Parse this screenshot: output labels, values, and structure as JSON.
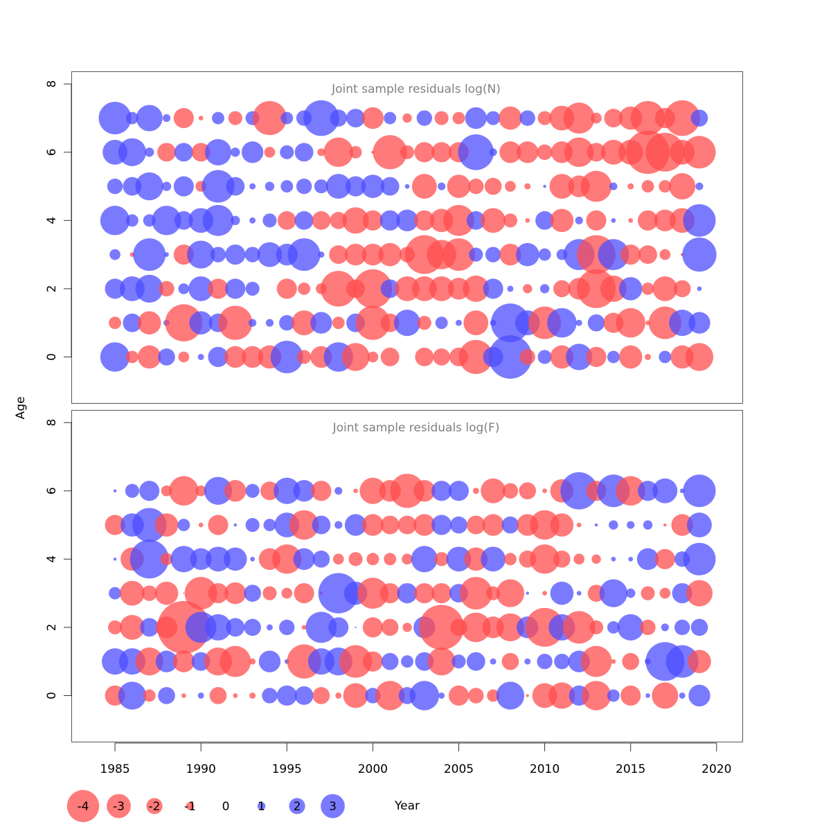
{
  "chart_data": [
    {
      "type": "scatter",
      "title": "Joint sample residuals log(N)",
      "xlabel": "Year",
      "ylabel": "Age",
      "xlim": [
        1982.5,
        2021.5
      ],
      "ylim": [
        -1.35,
        8.35
      ],
      "x_ticks": [
        1985,
        1990,
        1995,
        2000,
        2005,
        2010,
        2015,
        2020
      ],
      "y_ticks": [
        0,
        2,
        4,
        6,
        8
      ],
      "years": [
        1985,
        1986,
        1987,
        1988,
        1989,
        1990,
        1991,
        1992,
        1993,
        1994,
        1995,
        1996,
        1997,
        1998,
        1999,
        2000,
        2001,
        2002,
        2003,
        2004,
        2005,
        2006,
        2007,
        2008,
        2009,
        2010,
        2011,
        2012,
        2013,
        2014,
        2015,
        2016,
        2017,
        2018,
        2019
      ],
      "colors": {
        "negative": "#ff4d4d",
        "positive": "#4d4dff"
      },
      "series": [
        {
          "age": 7,
          "residuals": [
            2.1,
            0.8,
            1.7,
            0.5,
            -1.3,
            -0.3,
            0.8,
            -0.9,
            0.9,
            -2.2,
            0.8,
            1.0,
            2.3,
            1.1,
            1.2,
            -1.4,
            0.8,
            -0.6,
            1.0,
            -0.9,
            -0.8,
            1.4,
            0.9,
            -1.5,
            1.0,
            -0.9,
            -1.6,
            -2.0,
            -0.7,
            -1.2,
            -1.5,
            -2.2,
            -1.3,
            -2.3,
            1.1
          ]
        },
        {
          "age": 6,
          "residuals": [
            1.6,
            1.8,
            0.6,
            -1.2,
            1.2,
            -1.2,
            1.7,
            0.6,
            1.4,
            -0.7,
            0.9,
            1.2,
            -0.5,
            -1.9,
            -0.8,
            -0.2,
            -2.2,
            -0.9,
            -1.3,
            -1.3,
            -1.3,
            2.3,
            0.5,
            -1.4,
            -1.4,
            -1.0,
            -1.4,
            -1.9,
            -1.2,
            -1.6,
            -1.6,
            -2.8,
            -2.5,
            -1.6,
            -2.1
          ]
        },
        {
          "age": 5,
          "residuals": [
            1.0,
            1.2,
            1.8,
            0.6,
            1.3,
            -0.7,
            2.1,
            1.2,
            0.4,
            0.6,
            0.8,
            1.0,
            0.9,
            1.6,
            1.3,
            1.5,
            1.2,
            0.3,
            -1.6,
            0.5,
            -1.5,
            -1.0,
            -1.1,
            -0.7,
            -0.4,
            0.2,
            -1.6,
            -1.4,
            -2.0,
            0.5,
            -0.4,
            -0.8,
            -0.8,
            -1.7,
            0.5
          ]
        },
        {
          "age": 4,
          "residuals": [
            1.9,
            0.8,
            0.8,
            1.9,
            1.2,
            1.6,
            2.0,
            0.6,
            0.4,
            0.9,
            -1.2,
            1.2,
            -1.2,
            -1.1,
            -1.7,
            -1.3,
            1.3,
            1.4,
            -1.3,
            -1.5,
            -2.0,
            1.2,
            -1.6,
            -0.9,
            -0.3,
            1.2,
            -1.5,
            0.5,
            -1.3,
            0.3,
            -0.3,
            -1.3,
            -1.4,
            -1.6,
            2.1
          ]
        },
        {
          "age": 3,
          "residuals": [
            0.7,
            -0.3,
            2.1,
            0.3,
            -1.3,
            1.8,
            1.0,
            1.3,
            1.0,
            1.6,
            1.4,
            2.1,
            0.4,
            -1.2,
            -1.4,
            -1.4,
            -1.5,
            -1.0,
            -2.5,
            -1.9,
            -2.1,
            0.9,
            1.0,
            -1.4,
            1.5,
            0.8,
            0.7,
            2.0,
            -2.5,
            2.0,
            -1.3,
            -1.2,
            -0.7,
            -0.2,
            2.2
          ]
        },
        {
          "age": 2,
          "residuals": [
            1.3,
            1.6,
            1.8,
            -1.0,
            0.7,
            1.6,
            -1.3,
            1.3,
            0.9,
            0.0,
            -1.3,
            -0.8,
            -0.7,
            -2.3,
            -1.2,
            -2.5,
            1.2,
            -1.6,
            -1.6,
            -1.6,
            -1.4,
            -1.7,
            1.3,
            0.4,
            -0.6,
            0.6,
            -1.1,
            -1.4,
            -2.5,
            -1.7,
            1.5,
            -0.8,
            -1.6,
            -1.1,
            0.3
          ]
        },
        {
          "age": 1,
          "residuals": [
            -0.8,
            1.2,
            -1.5,
            0.4,
            -2.4,
            1.5,
            1.2,
            -2.2,
            0.5,
            0.5,
            1.0,
            -1.6,
            1.4,
            -0.8,
            1.2,
            -2.2,
            -1.2,
            1.7,
            -0.9,
            0.8,
            0.4,
            -1.6,
            0.4,
            2.5,
            1.6,
            -2.1,
            1.9,
            0.4,
            1.1,
            -1.3,
            -1.9,
            -0.3,
            -2.1,
            1.7,
            1.4
          ]
        },
        {
          "age": 0,
          "residuals": [
            1.9,
            -0.8,
            -1.5,
            1.1,
            -0.7,
            0.4,
            1.3,
            -1.4,
            -1.4,
            -1.5,
            2.1,
            -0.9,
            -1.4,
            1.9,
            -1.8,
            -0.7,
            -1.2,
            0.0,
            -1.2,
            -1.1,
            -1.2,
            -2.2,
            1.3,
            2.8,
            -1.0,
            0.9,
            -1.5,
            1.7,
            -1.3,
            0.8,
            -1.5,
            -0.4,
            0.8,
            -1.5,
            -1.8
          ]
        }
      ]
    },
    {
      "type": "scatter",
      "title": "Joint sample residuals log(F)",
      "xlabel": "Year",
      "ylabel": "Age",
      "xlim": [
        1982.5,
        2021.5
      ],
      "ylim": [
        -1.35,
        8.35
      ],
      "x_ticks": [
        1985,
        1990,
        1995,
        2000,
        2005,
        2010,
        2015,
        2020
      ],
      "y_ticks": [
        0,
        2,
        4,
        6,
        8
      ],
      "years": [
        1985,
        1986,
        1987,
        1988,
        1989,
        1990,
        1991,
        1992,
        1993,
        1994,
        1995,
        1996,
        1997,
        1998,
        1999,
        2000,
        2001,
        2002,
        2003,
        2004,
        2005,
        2006,
        2007,
        2008,
        2009,
        2010,
        2011,
        2012,
        2013,
        2014,
        2015,
        2016,
        2017,
        2018,
        2019
      ],
      "colors": {
        "negative": "#ff4d4d",
        "positive": "#4d4dff"
      },
      "series": [
        {
          "age": 6,
          "residuals": [
            0.2,
            0.9,
            1.3,
            -0.7,
            -1.9,
            -0.7,
            1.8,
            -1.4,
            0.9,
            -1.2,
            1.7,
            1.4,
            -1.3,
            0.5,
            -0.3,
            -1.7,
            -1.4,
            -2.2,
            -1.4,
            1.3,
            1.3,
            -0.4,
            -1.6,
            -1.0,
            -1.1,
            -0.3,
            -1.5,
            2.4,
            -1.3,
            2.1,
            -1.9,
            1.3,
            1.6,
            0.3,
            2.1
          ]
        },
        {
          "age": 5,
          "residuals": [
            -1.3,
            1.5,
            2.2,
            -1.5,
            0.8,
            -0.3,
            -1.3,
            0.2,
            0.9,
            0.8,
            1.6,
            -1.9,
            1.2,
            0.5,
            1.4,
            -1.4,
            -1.2,
            -1.2,
            -1.4,
            1.3,
            1.1,
            -1.2,
            -1.4,
            1.1,
            -1.4,
            -1.9,
            -1.5,
            -0.3,
            0.2,
            0.6,
            0.5,
            0.6,
            -0.2,
            -1.4,
            1.6
          ]
        },
        {
          "age": 4,
          "residuals": [
            0.2,
            -1.5,
            2.5,
            -0.8,
            1.7,
            1.4,
            1.6,
            1.5,
            0.3,
            -1.4,
            -1.9,
            1.4,
            1.1,
            -0.7,
            -0.9,
            -0.8,
            -0.8,
            -0.7,
            1.7,
            -0.9,
            1.6,
            -1.5,
            1.6,
            -0.8,
            -1.1,
            -1.9,
            -1.1,
            -0.7,
            -0.6,
            0.3,
            0.3,
            1.4,
            -1.3,
            1.0,
            2.1
          ]
        },
        {
          "age": 3,
          "residuals": [
            0.8,
            -1.6,
            -1.0,
            -1.5,
            -0.1,
            -2.1,
            -1.3,
            -1.4,
            1.1,
            -0.9,
            -0.7,
            -1.3,
            -0.2,
            2.6,
            1.5,
            -2.0,
            -1.3,
            1.3,
            -1.3,
            -1.3,
            1.2,
            -2.1,
            -0.9,
            -1.8,
            0.2,
            -0.3,
            1.5,
            0.3,
            -1.1,
            1.8,
            0.6,
            -0.9,
            -0.7,
            1.3,
            -1.7
          ]
        },
        {
          "age": 2,
          "residuals": [
            -0.9,
            -1.6,
            1.2,
            -1.4,
            -3.4,
            2.0,
            1.7,
            1.2,
            1.1,
            0.4,
            1.0,
            -0.3,
            2.0,
            1.3,
            0.1,
            -1.3,
            -1.1,
            -0.6,
            1.4,
            -2.9,
            -1.1,
            -1.9,
            -1.4,
            -1.8,
            1.4,
            -2.5,
            1.7,
            -2.1,
            -0.9,
            0.8,
            1.7,
            -1.0,
            0.5,
            1.0,
            1.1
          ]
        },
        {
          "age": 1,
          "residuals": [
            1.7,
            1.7,
            -1.8,
            1.4,
            -1.4,
            1.2,
            -1.8,
            -2.0,
            -0.4,
            1.4,
            0.3,
            -2.2,
            1.7,
            1.8,
            -2.1,
            -1.3,
            1.1,
            0.8,
            1.2,
            -1.8,
            0.9,
            1.2,
            0.4,
            -1.1,
            0.4,
            1.0,
            1.0,
            1.4,
            -2.0,
            -0.3,
            -1.1,
            0.4,
            2.5,
            2.1,
            -1.5
          ]
        },
        {
          "age": 0,
          "residuals": [
            -1.3,
            1.8,
            -0.8,
            1.1,
            -0.3,
            0.4,
            -1.1,
            -0.3,
            -0.4,
            1.0,
            1.3,
            1.2,
            -1.1,
            -0.4,
            -1.6,
            1.0,
            -1.9,
            1.1,
            1.9,
            0.4,
            -1.3,
            -1.0,
            -0.8,
            1.8,
            -0.2,
            -1.6,
            -1.7,
            1.3,
            -1.9,
            0.8,
            -1.3,
            0.3,
            -1.7,
            0.4,
            1.4
          ]
        }
      ]
    }
  ],
  "legend": {
    "title": "Year",
    "items": [
      {
        "label": "-4",
        "value": -4
      },
      {
        "label": "-3",
        "value": -3
      },
      {
        "label": "-2",
        "value": -2
      },
      {
        "label": "-1",
        "value": -1
      },
      {
        "label": "0",
        "value": 0
      },
      {
        "label": "1",
        "value": 1
      },
      {
        "label": "2",
        "value": 2
      },
      {
        "label": "3",
        "value": 3
      }
    ]
  }
}
